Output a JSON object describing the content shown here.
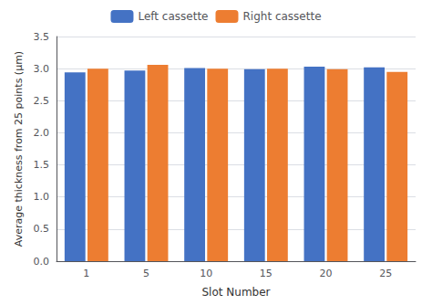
{
  "chart_data": {
    "type": "bar",
    "categories": [
      "1",
      "5",
      "10",
      "15",
      "20",
      "25"
    ],
    "series": [
      {
        "name": "Left cassette",
        "color": "#4472C4",
        "values": [
          2.94,
          2.97,
          3.01,
          2.99,
          3.03,
          3.02
        ]
      },
      {
        "name": "Right cassette",
        "color": "#ED7D31",
        "values": [
          3.0,
          3.06,
          3.0,
          3.0,
          2.99,
          2.95
        ]
      }
    ],
    "xlabel": "Slot Number",
    "ylabel": "Average thickness from 25 points (μm)",
    "ylim": [
      0.0,
      3.5
    ],
    "yticks": [
      {
        "value": 0,
        "label": "0.0"
      },
      0.5,
      {
        "value": 1,
        "label": "1.0"
      },
      1.5,
      {
        "value": 2,
        "label": "2.0"
      },
      2.5,
      {
        "value": 3,
        "label": "3.0"
      },
      3.5
    ],
    "grid": true,
    "legend": "top"
  }
}
